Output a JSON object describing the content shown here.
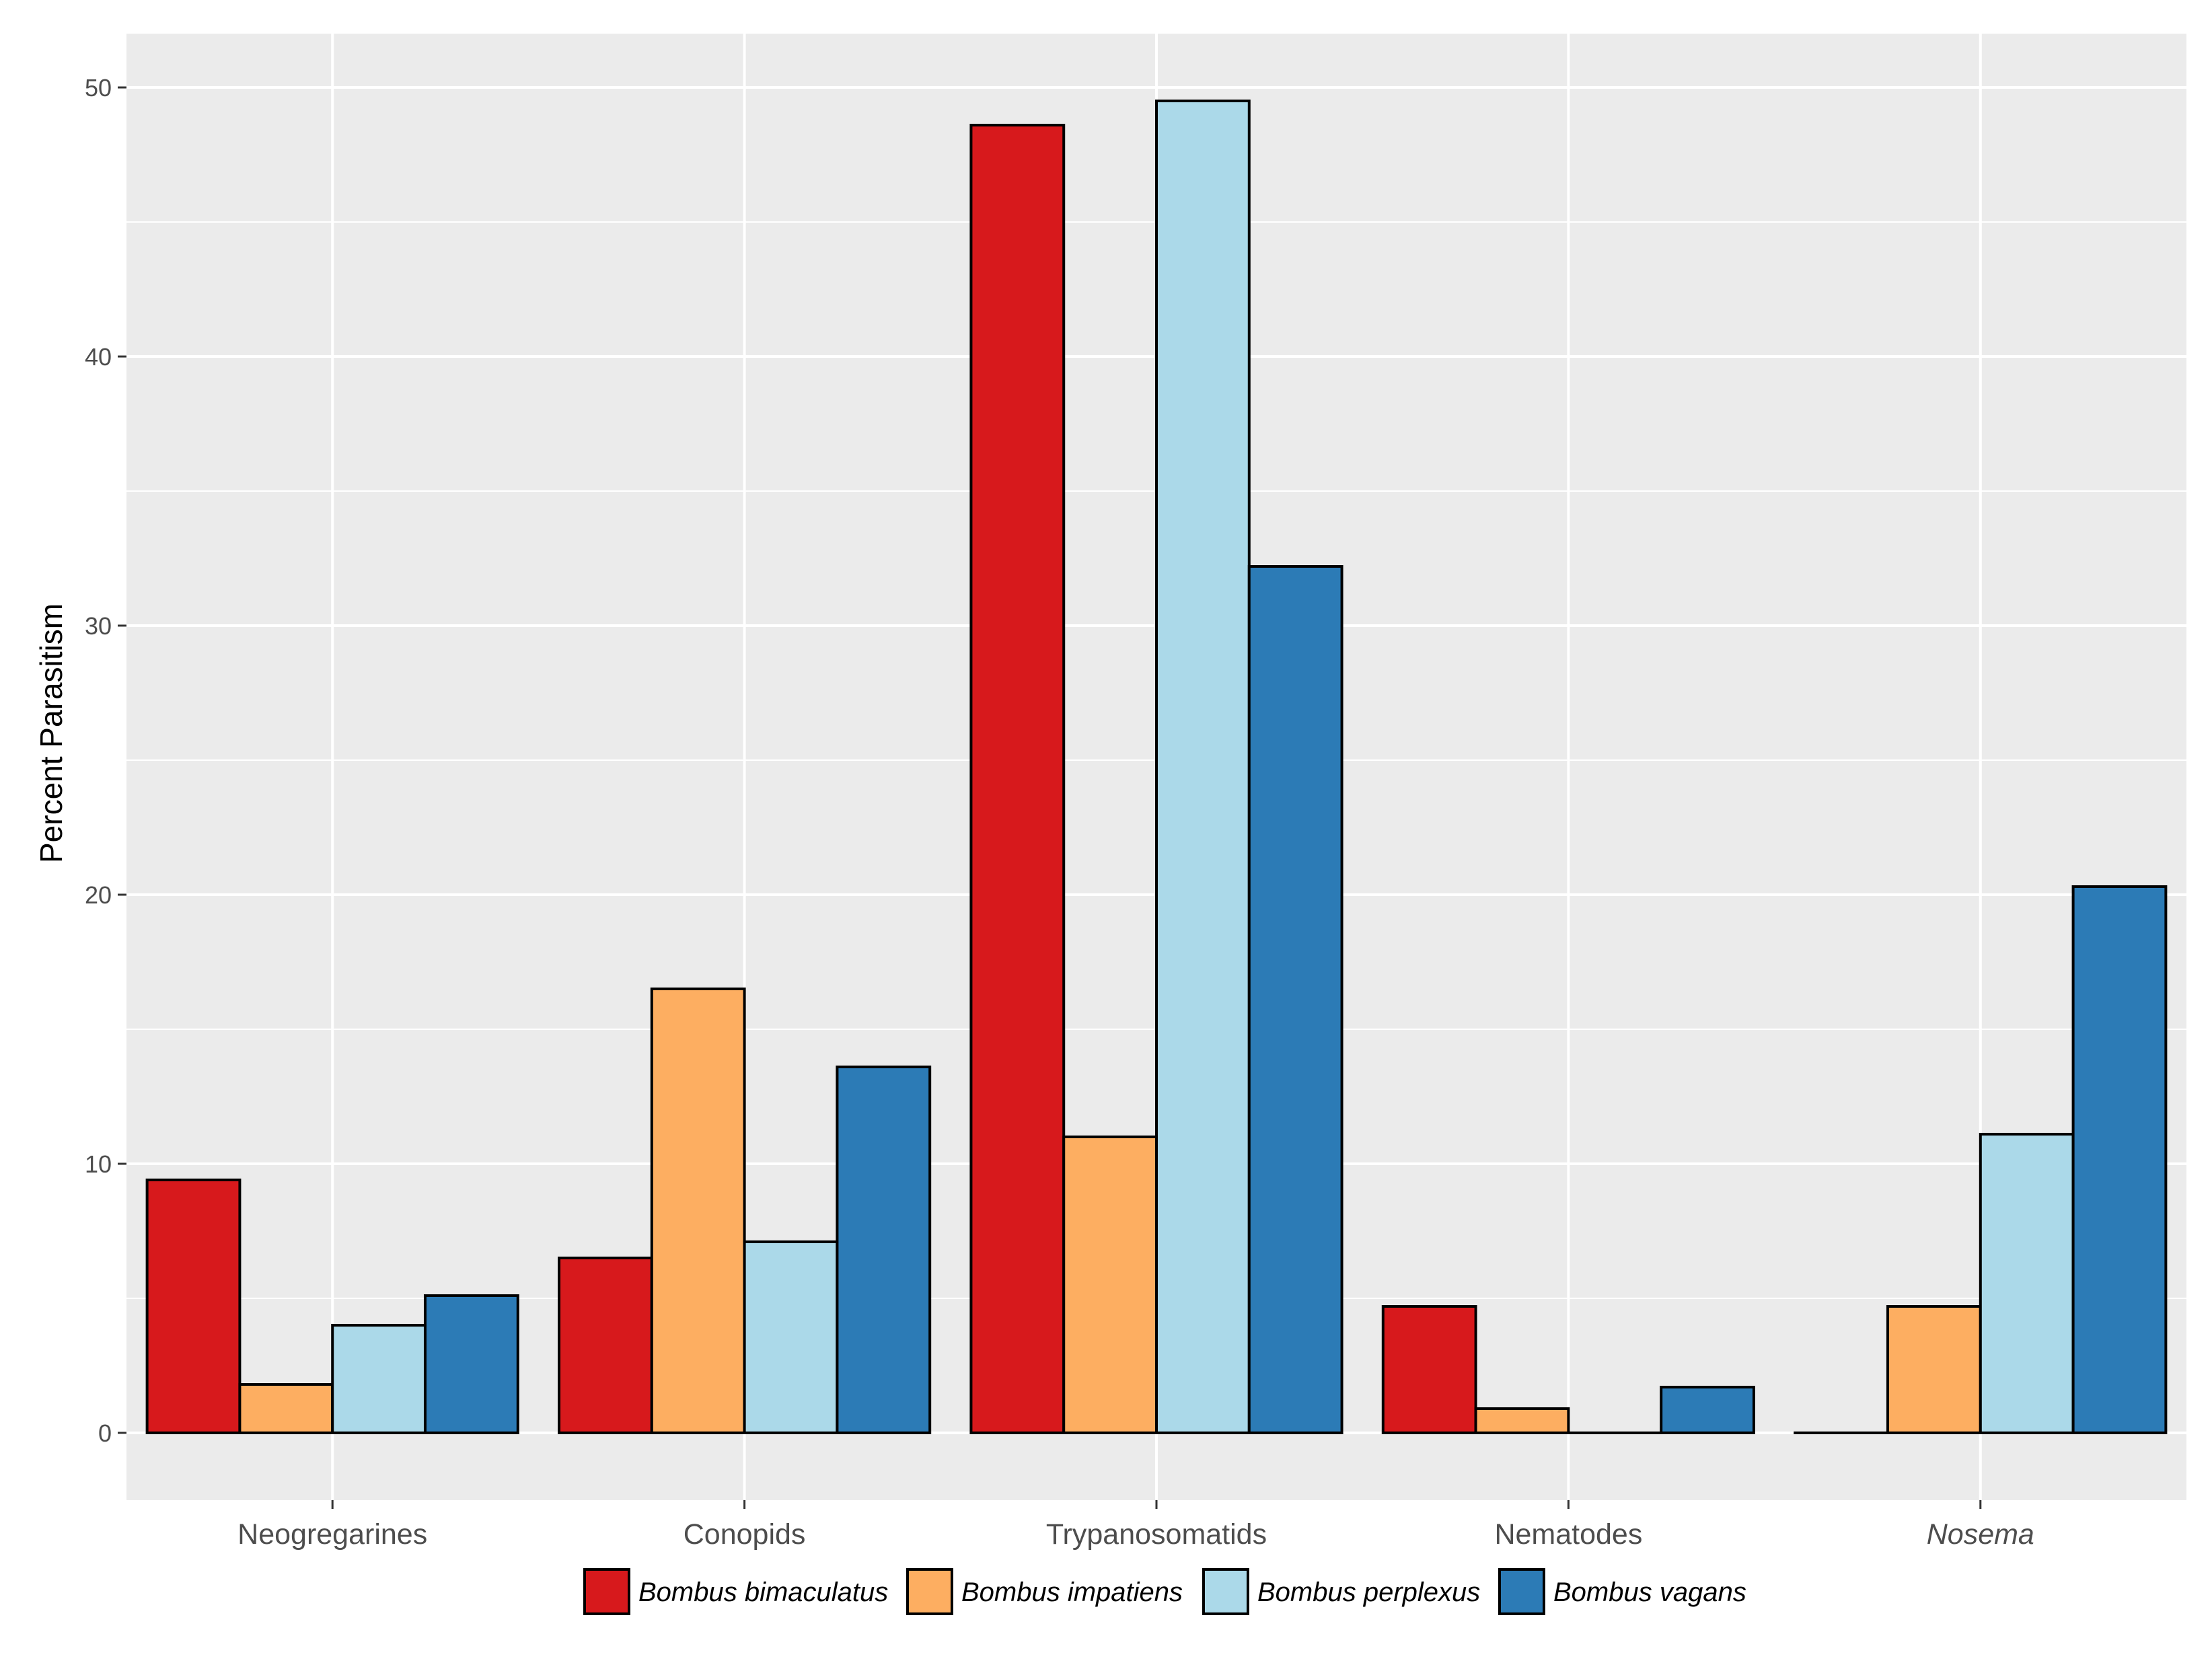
{
  "chart_data": {
    "type": "bar",
    "title": "",
    "xlabel": "",
    "ylabel": "Percent Parasitism",
    "ylim": [
      -2.5,
      52
    ],
    "yticks": [
      0,
      10,
      20,
      30,
      40,
      50
    ],
    "grid": true,
    "legend_position": "bottom",
    "categories": [
      "Neogregarines",
      "Conopids",
      "Trypanosomatids",
      "Nematodes",
      "Nosema"
    ],
    "italic_categories": [
      "Nosema"
    ],
    "series": [
      {
        "name": "Bombus bimaculatus",
        "color": "#d7191c",
        "values": [
          9.4,
          6.5,
          48.6,
          4.7,
          0
        ]
      },
      {
        "name": "Bombus impatiens",
        "color": "#fdae61",
        "values": [
          1.8,
          16.5,
          11.0,
          0.9,
          4.7
        ]
      },
      {
        "name": "Bombus perplexus",
        "color": "#abd9e9",
        "values": [
          4.0,
          7.1,
          49.5,
          0,
          11.1
        ]
      },
      {
        "name": "Bombus vagans",
        "color": "#2c7bb6",
        "values": [
          5.1,
          13.6,
          32.2,
          1.7,
          20.3
        ]
      }
    ],
    "panel_background": "#ebebeb",
    "grid_color": "#ffffff",
    "bar_outline_color": "#000000"
  }
}
